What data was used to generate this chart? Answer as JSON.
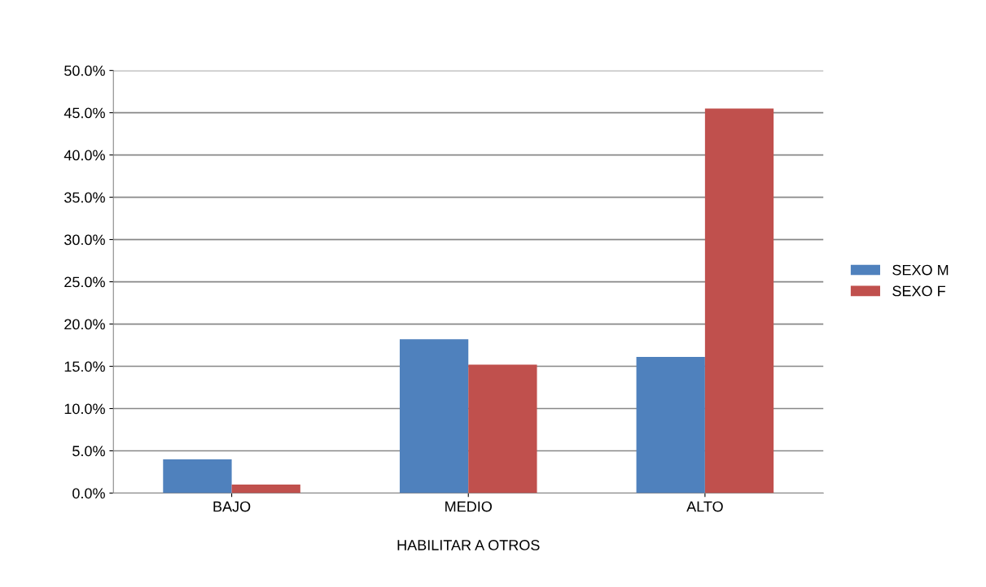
{
  "chart_data": {
    "type": "bar",
    "xlabel": "HABILITAR A OTROS",
    "categories": [
      "BAJO",
      "MEDIO",
      "ALTO"
    ],
    "series": [
      {
        "name": "SEXO M",
        "color": "#4f81bd",
        "values": [
          4.0,
          18.2,
          16.1
        ]
      },
      {
        "name": "SEXO F",
        "color": "#c0504d",
        "values": [
          1.0,
          15.2,
          45.5
        ]
      }
    ],
    "ylim": [
      0,
      50
    ],
    "yticks": [
      {
        "value": 0,
        "label": "0.0%"
      },
      {
        "value": 5,
        "label": "5.0%"
      },
      {
        "value": 10,
        "label": "10.0%"
      },
      {
        "value": 15,
        "label": "15.0%"
      },
      {
        "value": 20,
        "label": "20.0%"
      },
      {
        "value": 25,
        "label": "25.0%"
      },
      {
        "value": 30,
        "label": "30.0%"
      },
      {
        "value": 35,
        "label": "35.0%"
      },
      {
        "value": 40,
        "label": "40.0%"
      },
      {
        "value": 45,
        "label": "45.0%"
      },
      {
        "value": 50,
        "label": "50.0%"
      }
    ],
    "grid": "y",
    "legend": "right"
  }
}
